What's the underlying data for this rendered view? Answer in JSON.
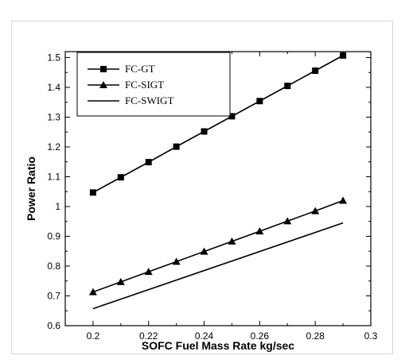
{
  "chart_data": {
    "type": "line",
    "xlabel": "SOFC Fuel Mass Rate kg/sec",
    "ylabel": "Power Ratio",
    "xlim": [
      0.19,
      0.3
    ],
    "ylim": [
      0.6,
      1.52
    ],
    "xticks": [
      "0.2",
      "0.22",
      "0.24",
      "0.26",
      "0.28",
      "0.3"
    ],
    "yticks": [
      "0.6",
      "0.7",
      "0.8",
      "0.9",
      "1",
      "1.1",
      "1.2",
      "1.3",
      "1.4",
      "1.5"
    ],
    "legend_position": "top-left",
    "series": [
      {
        "name": "FC-GT",
        "marker": "square",
        "x": [
          0.2,
          0.21,
          0.22,
          0.23,
          0.24,
          0.25,
          0.26,
          0.27,
          0.28,
          0.29
        ],
        "y": [
          1.047,
          1.098,
          1.149,
          1.201,
          1.252,
          1.303,
          1.354,
          1.405,
          1.456,
          1.507
        ]
      },
      {
        "name": "FC-SIGT",
        "marker": "triangle",
        "x": [
          0.2,
          0.21,
          0.22,
          0.23,
          0.24,
          0.25,
          0.26,
          0.27,
          0.28,
          0.29
        ],
        "y": [
          0.713,
          0.747,
          0.781,
          0.815,
          0.849,
          0.883,
          0.917,
          0.951,
          0.985,
          1.02
        ]
      },
      {
        "name": "FC-SWIGT",
        "marker": "none",
        "x": [
          0.2,
          0.29
        ],
        "y": [
          0.657,
          0.945
        ]
      }
    ],
    "colors": {
      "line": "#000000",
      "background": "#ffffff"
    }
  }
}
